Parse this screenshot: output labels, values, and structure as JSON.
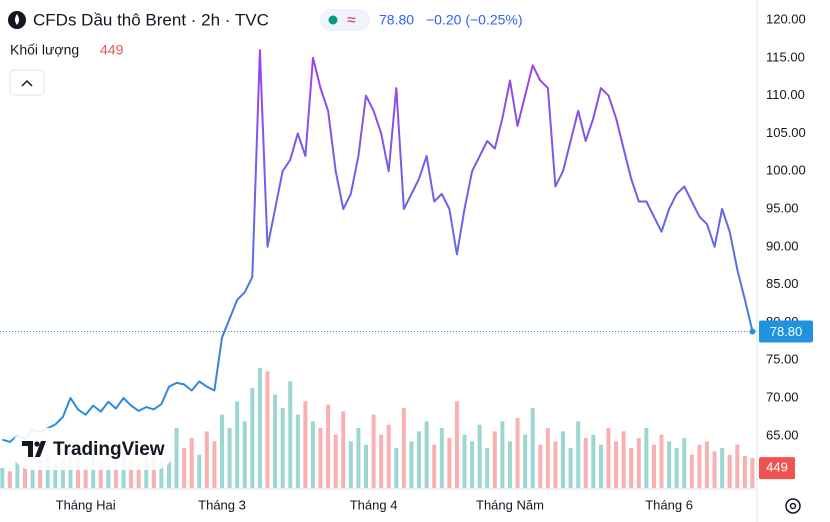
{
  "chart_data": {
    "type": "line",
    "title": "CFDs Dầu thô Brent · 2h · TVC",
    "last_label": "78.80",
    "change_label": "−0.20 (−0.25%)",
    "volume_title": "Khối lượng",
    "volume_last_label": "449",
    "watermark": "TradingView",
    "gradient": [
      "#a93de9",
      "#1f92e0"
    ],
    "up_color": "#26a69a",
    "down_color": "#ef5350",
    "xlim": [
      -0.3,
      99.6
    ],
    "xticks": [
      {
        "value": 11,
        "label": "Tháng Hai"
      },
      {
        "value": 29,
        "label": "Tháng 3"
      },
      {
        "value": 49,
        "label": "Tháng 4"
      },
      {
        "value": 67,
        "label": "Tháng Năm"
      },
      {
        "value": 88,
        "label": "Tháng 6"
      }
    ],
    "ylim": [
      58.1,
      122.65
    ],
    "yticks": [
      {
        "value": 65,
        "label": "65.00"
      },
      {
        "value": 70,
        "label": "70.00"
      },
      {
        "value": 75,
        "label": "75.00"
      },
      {
        "value": 80,
        "label": "80.00"
      },
      {
        "value": 85,
        "label": "85.00"
      },
      {
        "value": 90,
        "label": "90.00"
      },
      {
        "value": 95,
        "label": "95.00"
      },
      {
        "value": 100,
        "label": "100.00"
      },
      {
        "value": 105,
        "label": "105.00"
      },
      {
        "value": 110,
        "label": "110.00"
      },
      {
        "value": 115,
        "label": "115.00"
      },
      {
        "value": 120,
        "label": "120.00"
      }
    ],
    "series": [
      {
        "values": [
          64.5,
          64.2,
          65,
          64.6,
          65.8,
          65.5,
          66,
          66.5,
          67.5,
          70,
          68.5,
          67.8,
          69,
          68.2,
          69.5,
          68.6,
          70,
          69,
          68.3,
          68.8,
          68.5,
          69.2,
          71.5,
          72,
          71.8,
          71,
          72.2,
          71.5,
          71,
          78,
          80.5,
          83,
          84,
          86,
          116,
          90,
          95,
          100,
          101.5,
          105,
          102,
          115,
          111,
          108,
          100,
          95,
          97,
          102,
          110,
          108,
          105,
          100,
          111,
          95,
          97,
          99,
          102,
          96,
          97,
          95,
          89,
          95,
          100,
          102,
          104,
          103,
          107,
          112,
          106,
          110,
          114,
          112,
          111,
          98,
          100,
          104,
          108,
          104,
          107,
          111,
          110,
          107,
          103,
          99,
          96,
          96,
          94,
          92,
          95,
          97,
          98,
          96,
          94,
          93,
          90,
          95,
          92,
          87,
          83,
          78.8
        ]
      }
    ],
    "volume": [
      300,
      250,
      400,
      350,
      280,
      420,
      500,
      380,
      450,
      600,
      520,
      300,
      650,
      400,
      350,
      500,
      700,
      450,
      380,
      620,
      550,
      400,
      480,
      900,
      600,
      750,
      500,
      850,
      700,
      1100,
      900,
      1300,
      1000,
      1500,
      1800,
      1750,
      1400,
      1200,
      1600,
      1100,
      1300,
      1000,
      900,
      1250,
      800,
      1150,
      700,
      900,
      650,
      1100,
      800,
      950,
      600,
      1200,
      700,
      850,
      1000,
      650,
      900,
      750,
      1300,
      800,
      700,
      950,
      600,
      850,
      1000,
      700,
      1050,
      800,
      1200,
      650,
      900,
      700,
      850,
      600,
      1000,
      750,
      800,
      650,
      900,
      700,
      850,
      600,
      750,
      900,
      650,
      800,
      700,
      600,
      750,
      500,
      650,
      700,
      550,
      600,
      500,
      650,
      480,
      449
    ]
  }
}
